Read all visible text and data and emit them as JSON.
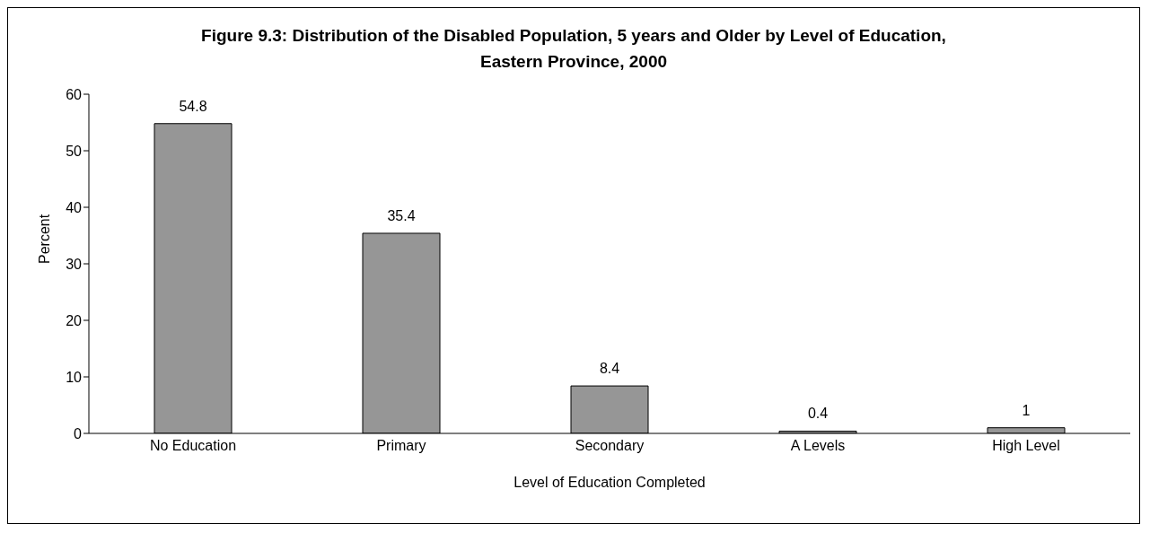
{
  "chart_data": {
    "type": "bar",
    "title": "Figure 9.3: Distribution of the Disabled Population, 5 years and Older by Level of Education, Eastern Province, 2000",
    "xlabel": "Level of Education Completed",
    "ylabel": "Percent",
    "categories": [
      "No Education",
      "Primary",
      "Secondary",
      "A Levels",
      "High Level"
    ],
    "values": [
      54.8,
      35.4,
      8.4,
      0.4,
      1
    ],
    "color": "#969696",
    "ylim": [
      0,
      60
    ],
    "yticks": [
      0,
      10,
      20,
      30,
      40,
      50,
      60
    ],
    "grid": false,
    "legend": false,
    "data_labels": true
  }
}
